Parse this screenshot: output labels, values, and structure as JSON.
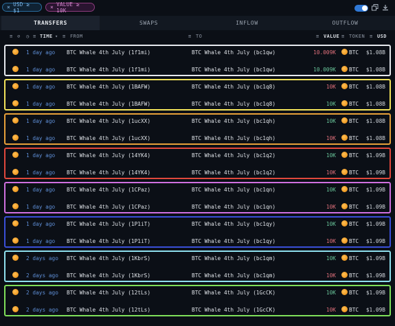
{
  "filters": {
    "usd_chip": "USD ≥ $1",
    "value_chip": "VALUE ≥ 10K",
    "close_glyph": "×"
  },
  "tabs": [
    "TRANSFERS",
    "SWAPS",
    "INFLOW",
    "OUTFLOW"
  ],
  "active_tab": "TRANSFERS",
  "columns": {
    "time": "TIME",
    "from": "FROM",
    "to": "TO",
    "value": "VALUE",
    "token": "TOKEN",
    "usd": "USD"
  },
  "colors": {
    "group_borders": [
      "#e6e9ee",
      "#f2e25a",
      "#e8a13a",
      "#e0483c",
      "#d070e0",
      "#3a4fd8",
      "#8fe0ee",
      "#7fe05a"
    ],
    "negative": "#e0707b",
    "positive": "#69c59a",
    "accent": "#2f78d6"
  },
  "rows": [
    {
      "time": "1 day ago",
      "from": "BTC Whale 4th July  (1f1mi)",
      "to": "BTC Whale 4th July  (bc1qw)",
      "value": "10.009K",
      "value_color": "neg",
      "token": "BTC",
      "usd": "$1.08B"
    },
    {
      "time": "1 day ago",
      "from": "BTC Whale 4th July  (1f1mi)",
      "to": "BTC Whale 4th July  (bc1qw)",
      "value": "10.009K",
      "value_color": "pos",
      "token": "BTC",
      "usd": "$1.08B"
    },
    {
      "time": "1 day ago",
      "from": "BTC Whale 4th July  (1BAFW)",
      "to": "BTC Whale 4th July  (bc1q8)",
      "value": "10K",
      "value_color": "neg",
      "token": "BTC",
      "usd": "$1.08B"
    },
    {
      "time": "1 day ago",
      "from": "BTC Whale 4th July  (1BAFW)",
      "to": "BTC Whale 4th July  (bc1q8)",
      "value": "10K",
      "value_color": "pos",
      "token": "BTC",
      "usd": "$1.08B"
    },
    {
      "time": "1 day ago",
      "from": "BTC Whale 4th July  (1ucXX)",
      "to": "BTC Whale 4th July  (bc1qh)",
      "value": "10K",
      "value_color": "pos",
      "token": "BTC",
      "usd": "$1.08B"
    },
    {
      "time": "1 day ago",
      "from": "BTC Whale 4th July  (1ucXX)",
      "to": "BTC Whale 4th July  (bc1qh)",
      "value": "10K",
      "value_color": "neg",
      "token": "BTC",
      "usd": "$1.08B"
    },
    {
      "time": "1 day ago",
      "from": "BTC Whale 4th July  (14YK4)",
      "to": "BTC Whale 4th July  (bc1q2)",
      "value": "10K",
      "value_color": "pos",
      "token": "BTC",
      "usd": "$1.09B"
    },
    {
      "time": "1 day ago",
      "from": "BTC Whale 4th July  (14YK4)",
      "to": "BTC Whale 4th July  (bc1q2)",
      "value": "10K",
      "value_color": "neg",
      "token": "BTC",
      "usd": "$1.09B"
    },
    {
      "time": "1 day ago",
      "from": "BTC Whale 4th July  (1CPaz)",
      "to": "BTC Whale 4th July  (bc1qn)",
      "value": "10K",
      "value_color": "pos",
      "token": "BTC",
      "usd": "$1.09B"
    },
    {
      "time": "1 day ago",
      "from": "BTC Whale 4th July  (1CPaz)",
      "to": "BTC Whale 4th July  (bc1qn)",
      "value": "10K",
      "value_color": "neg",
      "token": "BTC",
      "usd": "$1.09B"
    },
    {
      "time": "1 day ago",
      "from": "BTC Whale 4th July  (1P1iT)",
      "to": "BTC Whale 4th July  (bc1qy)",
      "value": "10K",
      "value_color": "pos",
      "token": "BTC",
      "usd": "$1.09B"
    },
    {
      "time": "1 day ago",
      "from": "BTC Whale 4th July  (1P1iT)",
      "to": "BTC Whale 4th July  (bc1qy)",
      "value": "10K",
      "value_color": "neg",
      "token": "BTC",
      "usd": "$1.09B"
    },
    {
      "time": "2 days ago",
      "from": "BTC Whale 4th July  (1KbrS)",
      "to": "BTC Whale 4th July  (bc1qm)",
      "value": "10K",
      "value_color": "pos",
      "token": "BTC",
      "usd": "$1.09B"
    },
    {
      "time": "2 days ago",
      "from": "BTC Whale 4th July  (1KbrS)",
      "to": "BTC Whale 4th July  (bc1qm)",
      "value": "10K",
      "value_color": "neg",
      "token": "BTC",
      "usd": "$1.09B"
    },
    {
      "time": "2 days ago",
      "from": "BTC Whale 4th July  (12tLs)",
      "to": "BTC Whale 4th July  (1GcCK)",
      "value": "10K",
      "value_color": "pos",
      "token": "BTC",
      "usd": "$1.09B"
    },
    {
      "time": "2 days ago",
      "from": "BTC Whale 4th July  (12tLs)",
      "to": "BTC Whale 4th July  (1GcCK)",
      "value": "10K",
      "value_color": "neg",
      "token": "BTC",
      "usd": "$1.09B"
    }
  ]
}
